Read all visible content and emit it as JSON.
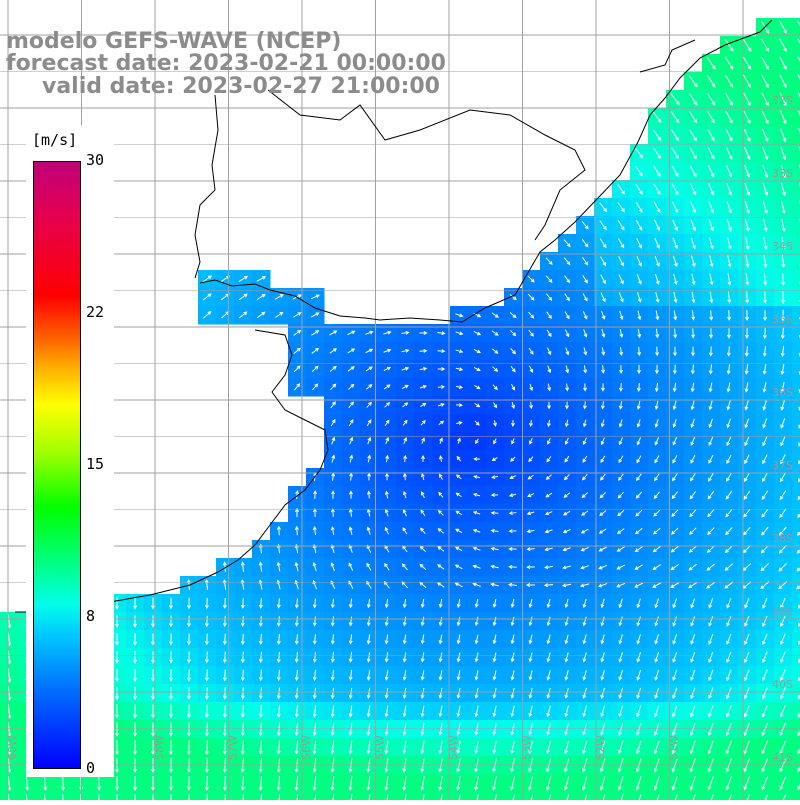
{
  "title": {
    "line1": "modelo GEFS-WAVE (NCEP)",
    "line2": "forecast date: 2023-02-21 00:00:00",
    "line3": "valid date: 2023-02-27 21:00:00"
  },
  "colorbar": {
    "units": "[m/s]",
    "ticks": [
      "30",
      "22",
      "15",
      "8",
      "0"
    ],
    "colors": [
      "#0000ff",
      "#00c8ff",
      "#00ff00",
      "#ffff00",
      "#ff0000",
      "#c0007a"
    ]
  },
  "map": {
    "lat_labels": [
      "32S",
      "33S",
      "34S",
      "35S",
      "36S",
      "37S",
      "38S",
      "39S",
      "40S",
      "41S"
    ],
    "lon_labels": [
      "60W",
      "59W",
      "58W",
      "57W",
      "56W",
      "55W",
      "54W",
      "53W",
      "52W",
      "51W"
    ],
    "land_color": "#ffffff",
    "grid_color": "#a0a0a0",
    "arrow_color": "#ffffff"
  }
}
